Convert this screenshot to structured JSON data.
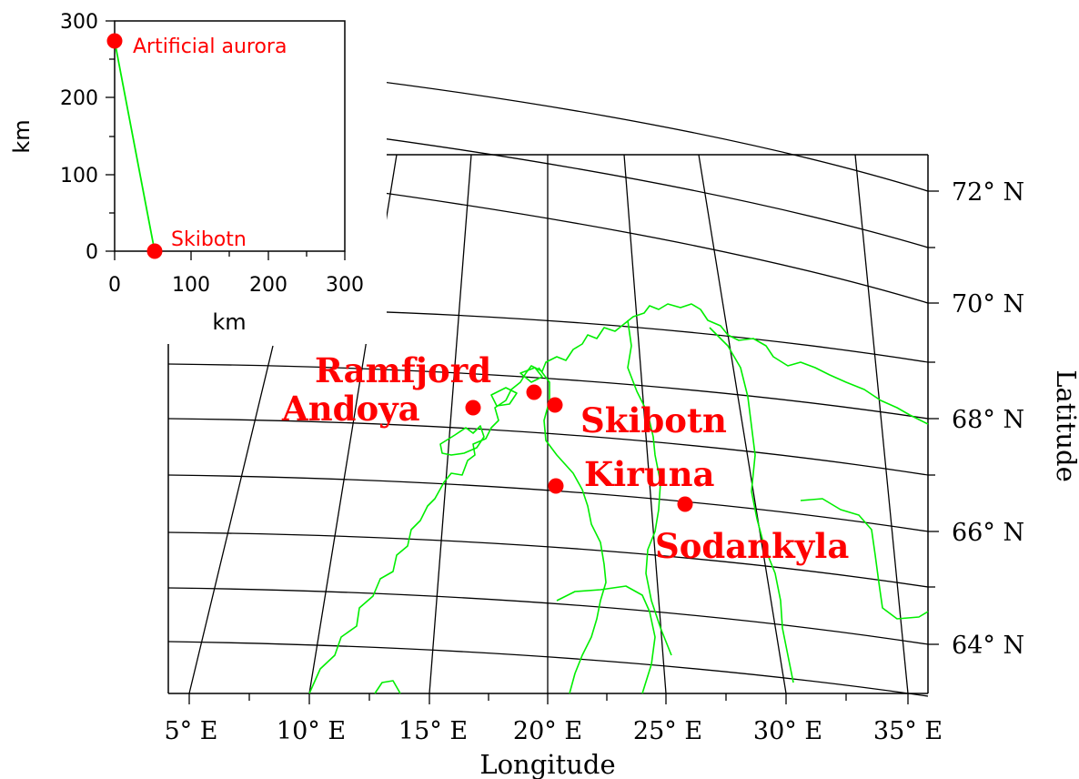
{
  "map": {
    "longitude_axis_title": "Longitude",
    "latitude_axis_title": "Latitude",
    "longitude_ticks": [
      "5° E",
      "10° E",
      "15° E",
      "20° E",
      "25° E",
      "30° E",
      "35° E"
    ],
    "latitude_ticks": [
      "64° N",
      "66° N",
      "68° N",
      "70° N",
      "72° N"
    ],
    "station_color": "#ff0000",
    "coast_color": "#00ee00",
    "grid_color": "#000000",
    "stations": [
      {
        "id": "ramfjord",
        "label": "Ramfjord"
      },
      {
        "id": "andoya",
        "label": "Andoya"
      },
      {
        "id": "skibotn",
        "label": "Skibotn"
      },
      {
        "id": "kiruna",
        "label": "Kiruna"
      },
      {
        "id": "sodankyla",
        "label": "Sodankyla"
      }
    ]
  },
  "inset": {
    "x_axis_title": "km",
    "y_axis_title": "km",
    "x_ticks": [
      "0",
      "100",
      "200",
      "300"
    ],
    "y_ticks": [
      "0",
      "100",
      "200",
      "300"
    ],
    "points": [
      {
        "label": "Artificial aurora"
      },
      {
        "label": "Skibotn"
      }
    ]
  }
}
